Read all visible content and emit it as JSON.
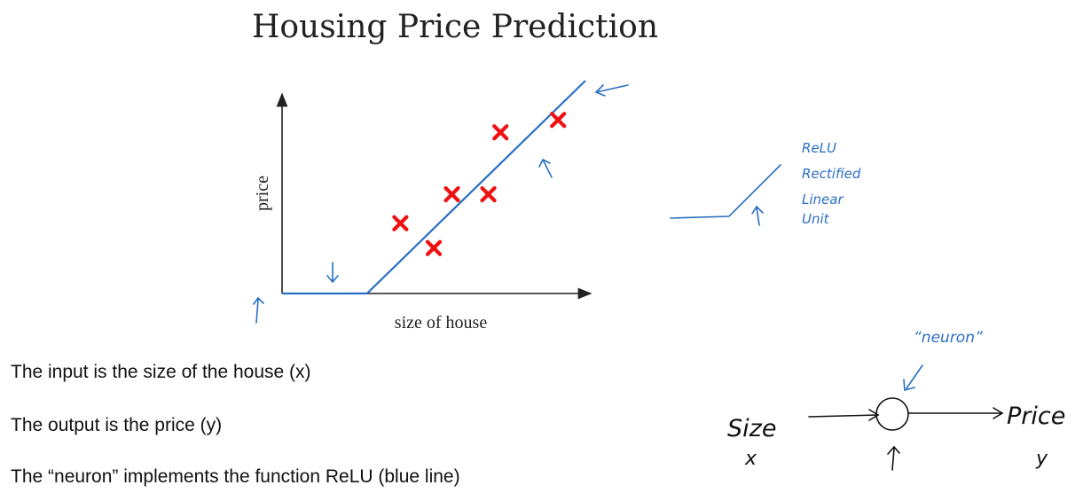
{
  "chart_data": {
    "type": "scatter",
    "title": "Housing Price Prediction",
    "xlabel": "size of house",
    "ylabel": "price",
    "xlim": [
      0,
      10
    ],
    "ylim": [
      0,
      10
    ],
    "grid": false,
    "points": [
      {
        "x": 3.9,
        "y": 3.4
      },
      {
        "x": 5.0,
        "y": 2.2
      },
      {
        "x": 5.6,
        "y": 4.8
      },
      {
        "x": 6.8,
        "y": 4.8
      },
      {
        "x": 7.2,
        "y": 7.8
      },
      {
        "x": 9.1,
        "y": 8.4
      }
    ],
    "relu_fit": [
      {
        "x": 0.0,
        "y": 0.0
      },
      {
        "x": 2.8,
        "y": 0.0
      },
      {
        "x": 10.0,
        "y": 10.3
      }
    ],
    "colors": {
      "points": "#ee1111",
      "fit_line": "#2a6fc4",
      "axes": "#222222",
      "annotation": "#2a6fc4"
    }
  },
  "annotations": {
    "relu_lines": [
      "ReLU",
      "Rectified",
      "Linear",
      "Unit"
    ],
    "neuron_label": "“neuron”",
    "input_label": "Size",
    "input_symbol": "x",
    "output_label": "Price",
    "output_symbol": "y"
  },
  "notes": [
    "The input is the size of the house (x)",
    "The output is the price (y)",
    "The “neuron” implements the function ReLU (blue line)"
  ]
}
